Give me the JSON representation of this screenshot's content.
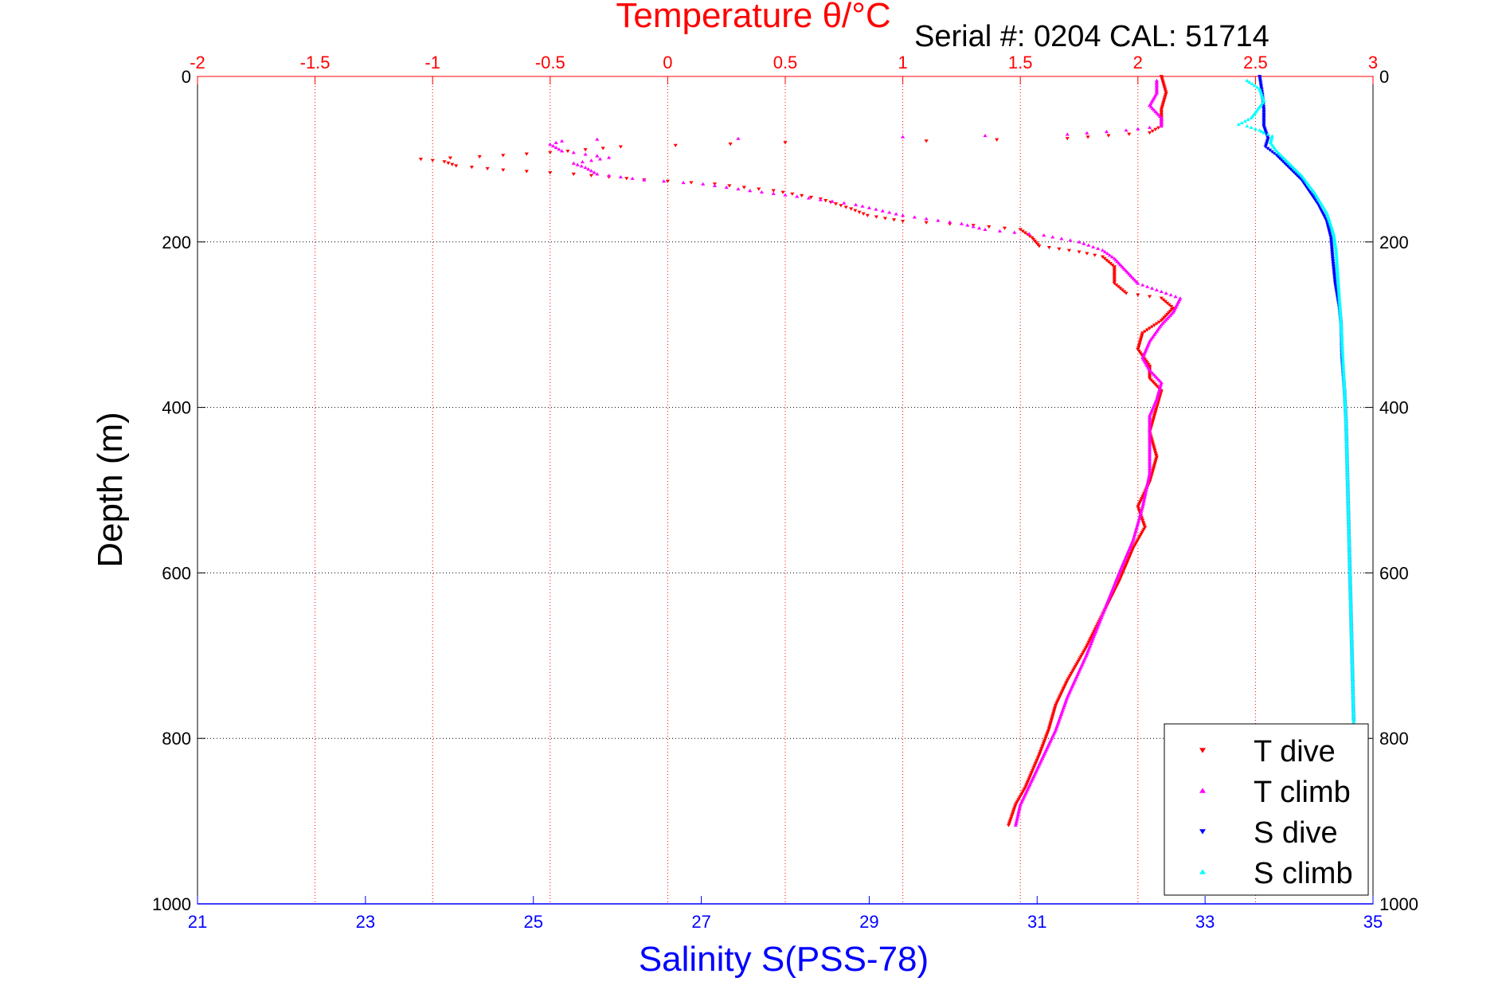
{
  "chart_data": {
    "type": "scatter",
    "title": "Temperature θ/°C",
    "subtitle": "Serial #: 0204  CAL: 51714",
    "xlabel_top": "Temperature θ/°C",
    "xlabel_bottom": "Salinity S(PSS-78)",
    "ylabel": "Depth (m)",
    "y_reversed": true,
    "ylim": [
      0,
      1000
    ],
    "yticks": [
      0,
      200,
      400,
      600,
      800,
      1000
    ],
    "top_axis": {
      "quantity": "Temperature",
      "lim": [
        -2,
        3
      ],
      "ticks": [
        -2,
        -1.5,
        -1,
        -0.5,
        0,
        0.5,
        1,
        1.5,
        2,
        2.5,
        3
      ],
      "tick_labels": [
        "-2",
        "-1.5",
        "-1",
        "-0.5",
        "0",
        "0.5",
        "1",
        "1.5",
        "2",
        "2.5",
        "3"
      ],
      "color": "#ff0000"
    },
    "bottom_axis": {
      "quantity": "Salinity",
      "lim": [
        21,
        35
      ],
      "ticks": [
        21,
        23,
        25,
        27,
        29,
        31,
        33,
        35
      ],
      "tick_labels": [
        "21",
        "23",
        "25",
        "27",
        "29",
        "31",
        "33",
        "35"
      ],
      "color": "#0000ff"
    },
    "grid": true,
    "legend_position": "bottom-right",
    "series": [
      {
        "name": "T dive",
        "axis": "top",
        "color": "#ff0000",
        "marker": "triangle-down",
        "points": [
          [
            2.1,
            0
          ],
          [
            2.12,
            20
          ],
          [
            2.1,
            40
          ],
          [
            2.1,
            60
          ],
          [
            2.05,
            68
          ],
          [
            1.7,
            75
          ],
          [
            1.1,
            78
          ],
          [
            0.5,
            80
          ],
          [
            -0.2,
            85
          ],
          [
            -0.5,
            92
          ],
          [
            -0.8,
            97
          ],
          [
            -1.05,
            100
          ],
          [
            -0.95,
            103
          ],
          [
            -0.9,
            108
          ],
          [
            -0.7,
            113
          ],
          [
            -0.4,
            118
          ],
          [
            -0.1,
            125
          ],
          [
            0.2,
            130
          ],
          [
            0.45,
            138
          ],
          [
            0.65,
            148
          ],
          [
            0.78,
            160
          ],
          [
            0.85,
            168
          ],
          [
            1.0,
            175
          ],
          [
            1.3,
            180
          ],
          [
            1.5,
            185
          ],
          [
            1.55,
            195
          ],
          [
            1.58,
            205
          ],
          [
            1.75,
            212
          ],
          [
            1.85,
            218
          ],
          [
            1.9,
            230
          ],
          [
            1.9,
            250
          ],
          [
            1.95,
            262
          ],
          [
            2.1,
            268
          ],
          [
            2.15,
            280
          ],
          [
            2.1,
            295
          ],
          [
            2.02,
            310
          ],
          [
            2.0,
            330
          ],
          [
            2.05,
            350
          ],
          [
            2.05,
            365
          ],
          [
            2.1,
            380
          ],
          [
            2.08,
            400
          ],
          [
            2.05,
            430
          ],
          [
            2.08,
            460
          ],
          [
            2.05,
            490
          ],
          [
            2.0,
            520
          ],
          [
            2.03,
            545
          ],
          [
            1.98,
            570
          ],
          [
            1.92,
            610
          ],
          [
            1.85,
            650
          ],
          [
            1.78,
            690
          ],
          [
            1.7,
            730
          ],
          [
            1.65,
            760
          ],
          [
            1.62,
            790
          ],
          [
            1.58,
            820
          ],
          [
            1.52,
            860
          ],
          [
            1.48,
            880
          ],
          [
            1.45,
            905
          ]
        ]
      },
      {
        "name": "T climb",
        "axis": "top",
        "color": "#ff00ff",
        "marker": "triangle-up",
        "points": [
          [
            1.48,
            905
          ],
          [
            1.5,
            880
          ],
          [
            1.55,
            850
          ],
          [
            1.6,
            820
          ],
          [
            1.65,
            790
          ],
          [
            1.7,
            750
          ],
          [
            1.78,
            700
          ],
          [
            1.85,
            650
          ],
          [
            1.92,
            600
          ],
          [
            1.98,
            560
          ],
          [
            2.02,
            520
          ],
          [
            2.05,
            480
          ],
          [
            2.05,
            440
          ],
          [
            2.05,
            410
          ],
          [
            2.08,
            390
          ],
          [
            2.1,
            370
          ],
          [
            2.05,
            355
          ],
          [
            2.02,
            340
          ],
          [
            2.05,
            320
          ],
          [
            2.1,
            300
          ],
          [
            2.15,
            285
          ],
          [
            2.18,
            268
          ],
          [
            2.1,
            260
          ],
          [
            2.0,
            250
          ],
          [
            1.95,
            235
          ],
          [
            1.9,
            220
          ],
          [
            1.85,
            210
          ],
          [
            1.75,
            200
          ],
          [
            1.6,
            192
          ],
          [
            1.35,
            185
          ],
          [
            1.25,
            178
          ],
          [
            1.0,
            168
          ],
          [
            0.8,
            155
          ],
          [
            0.55,
            145
          ],
          [
            0.35,
            138
          ],
          [
            0.15,
            130
          ],
          [
            -0.1,
            125
          ],
          [
            -0.3,
            118
          ],
          [
            -0.35,
            110
          ],
          [
            -0.4,
            105
          ],
          [
            -0.25,
            98
          ],
          [
            -0.45,
            90
          ],
          [
            -0.5,
            82
          ],
          [
            -0.45,
            78
          ],
          [
            -0.3,
            76
          ],
          [
            0.3,
            75
          ],
          [
            1.0,
            73
          ],
          [
            1.7,
            70
          ],
          [
            1.95,
            65
          ],
          [
            2.1,
            60
          ],
          [
            2.1,
            50
          ],
          [
            2.05,
            35
          ],
          [
            2.08,
            20
          ],
          [
            2.08,
            5
          ]
        ]
      },
      {
        "name": "S dive",
        "axis": "bottom",
        "color": "#0000ff",
        "marker": "triangle-down",
        "points": [
          [
            33.65,
            0
          ],
          [
            33.68,
            20
          ],
          [
            33.7,
            40
          ],
          [
            33.7,
            60
          ],
          [
            33.75,
            75
          ],
          [
            33.72,
            85
          ],
          [
            33.85,
            95
          ],
          [
            34.0,
            110
          ],
          [
            34.15,
            125
          ],
          [
            34.25,
            140
          ],
          [
            34.35,
            155
          ],
          [
            34.45,
            175
          ],
          [
            34.5,
            195
          ],
          [
            34.52,
            220
          ],
          [
            34.55,
            250
          ],
          [
            34.6,
            280
          ],
          [
            34.62,
            300
          ],
          [
            34.63,
            340
          ],
          [
            34.66,
            380
          ],
          [
            34.68,
            420
          ],
          [
            34.69,
            460
          ],
          [
            34.7,
            500
          ],
          [
            34.71,
            540
          ],
          [
            34.72,
            580
          ],
          [
            34.73,
            620
          ],
          [
            34.74,
            660
          ],
          [
            34.75,
            700
          ],
          [
            34.76,
            740
          ],
          [
            34.77,
            780
          ]
        ]
      },
      {
        "name": "S climb",
        "axis": "bottom",
        "color": "#00ffff",
        "marker": "triangle-up",
        "points": [
          [
            34.77,
            780
          ],
          [
            34.76,
            740
          ],
          [
            34.75,
            700
          ],
          [
            34.74,
            660
          ],
          [
            34.73,
            620
          ],
          [
            34.72,
            580
          ],
          [
            34.71,
            540
          ],
          [
            34.7,
            500
          ],
          [
            34.69,
            460
          ],
          [
            34.68,
            420
          ],
          [
            34.66,
            380
          ],
          [
            34.64,
            340
          ],
          [
            34.62,
            300
          ],
          [
            34.6,
            270
          ],
          [
            34.58,
            240
          ],
          [
            34.56,
            210
          ],
          [
            34.53,
            190
          ],
          [
            34.45,
            165
          ],
          [
            34.3,
            140
          ],
          [
            34.15,
            120
          ],
          [
            34.0,
            105
          ],
          [
            33.85,
            90
          ],
          [
            33.78,
            80
          ],
          [
            33.8,
            72
          ],
          [
            33.7,
            68
          ],
          [
            33.65,
            65
          ],
          [
            33.5,
            60
          ],
          [
            33.4,
            58
          ],
          [
            33.55,
            50
          ],
          [
            33.7,
            30
          ],
          [
            33.65,
            15
          ],
          [
            33.5,
            5
          ]
        ]
      }
    ]
  }
}
